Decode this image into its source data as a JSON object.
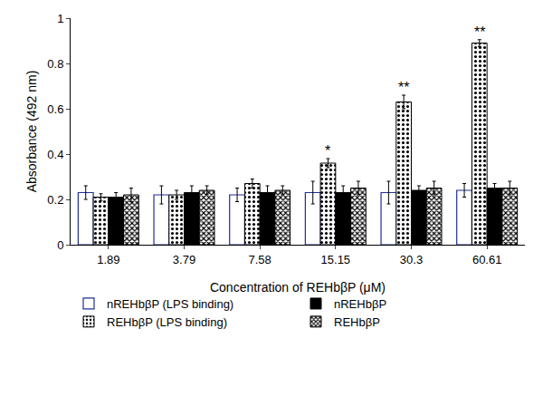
{
  "chart_data": {
    "type": "bar",
    "x_label": "Concentration of REHbβP (μM)",
    "y_label": "Absorbance (492 nm)",
    "categories": [
      "1.89",
      "3.79",
      "7.58",
      "15.15",
      "30.3",
      "60.61"
    ],
    "ylim": [
      0,
      1
    ],
    "yticks": [
      0,
      0.2,
      0.4,
      0.6,
      0.8,
      1
    ],
    "grid": false,
    "legend": "bottom",
    "series": [
      {
        "name": "nREHbβP (LPS binding)",
        "color": "#1f2f9a",
        "marker": "outline",
        "values": [
          0.23,
          0.22,
          0.22,
          0.23,
          0.23,
          0.24
        ],
        "errors": [
          0.03,
          0.04,
          0.03,
          0.05,
          0.05,
          0.03
        ]
      },
      {
        "name": "REHbβP (LPS binding)",
        "color": "#000000",
        "marker": "dots",
        "values": [
          0.21,
          0.22,
          0.27,
          0.36,
          0.63,
          0.89
        ],
        "errors": [
          0.015,
          0.02,
          0.02,
          0.02,
          0.03,
          0.015
        ]
      },
      {
        "name": "nREHbβP",
        "color": "#000000",
        "marker": "solid",
        "values": [
          0.21,
          0.23,
          0.23,
          0.23,
          0.24,
          0.25
        ],
        "errors": [
          0.02,
          0.03,
          0.03,
          0.03,
          0.02,
          0.02
        ]
      },
      {
        "name": "REHbβP",
        "color": "#000000",
        "marker": "checker",
        "values": [
          0.22,
          0.24,
          0.24,
          0.25,
          0.25,
          0.25
        ],
        "errors": [
          0.03,
          0.02,
          0.02,
          0.03,
          0.03,
          0.03
        ]
      }
    ],
    "annotations": [
      {
        "category": "15.15",
        "series": "REHbβP (LPS binding)",
        "text": "*"
      },
      {
        "category": "30.3",
        "series": "REHbβP (LPS binding)",
        "text": "**"
      },
      {
        "category": "60.61",
        "series": "REHbβP (LPS binding)",
        "text": "**"
      }
    ]
  }
}
